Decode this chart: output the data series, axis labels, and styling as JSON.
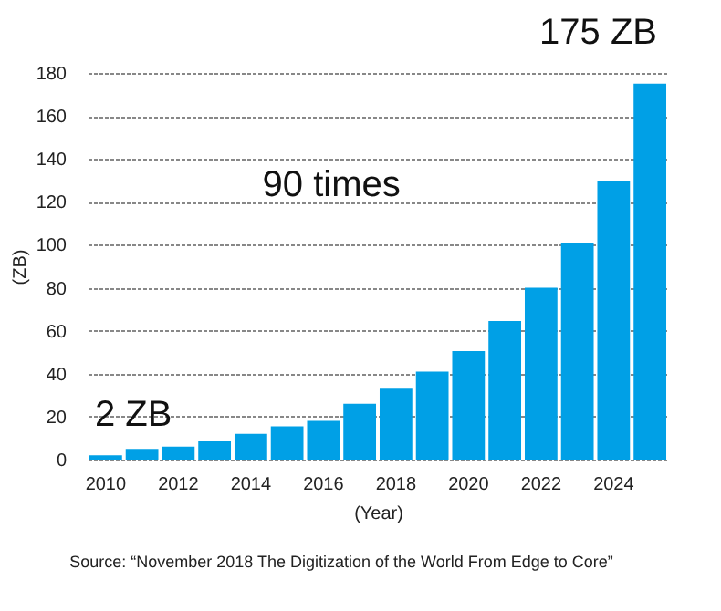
{
  "chart_data": {
    "type": "bar",
    "categories": [
      "2010",
      null,
      "2012",
      null,
      "2014",
      null,
      "2016",
      null,
      "2018",
      null,
      "2020",
      null,
      "2022",
      null,
      "2024",
      null
    ],
    "values": [
      2,
      5,
      6,
      8.5,
      12,
      15.5,
      18,
      26,
      33,
      41,
      50.5,
      64.5,
      80,
      101,
      129.5,
      175
    ],
    "color": "#00a0e6",
    "xlabel": "(Year)",
    "ylabel": "(ZB)",
    "ylim": [
      0,
      180
    ],
    "yticks": [
      0,
      20,
      40,
      60,
      80,
      100,
      120,
      140,
      160,
      180
    ],
    "grid": "y",
    "annotations": [
      {
        "text": "2 ZB",
        "x": "2010",
        "y": 2
      },
      "175 ZB",
      "90 times",
      "Source: “November 2018 The Digitization of the World From Edge to Core”"
    ]
  }
}
